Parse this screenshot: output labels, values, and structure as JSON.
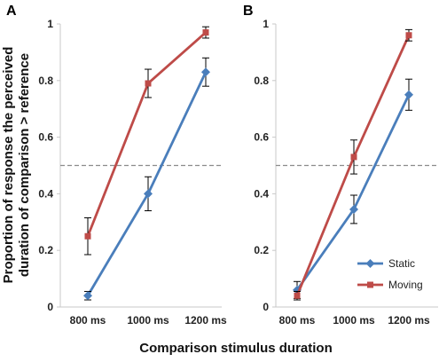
{
  "figure": {
    "ylabel_line1": "Proportion of response the perceived",
    "ylabel_line2": "duration of  comparison > reference",
    "xlabel": "Comparison stimulus duration"
  },
  "colors": {
    "static": "#4a7ebb",
    "moving": "#be4b48",
    "reference_line": "#8c8c8c",
    "error_bar": "#000000"
  },
  "icons": {
    "static_marker": "diamond-icon",
    "moving_marker": "square-icon"
  },
  "chart_data": [
    {
      "type": "line",
      "panel_label": "A",
      "categories": [
        "800 ms",
        "1000 ms",
        "1200 ms"
      ],
      "ylim": [
        0,
        1
      ],
      "yticks": [
        "0",
        "0.2",
        "0.4",
        "0.6",
        "0.8",
        "1"
      ],
      "reference_line": 0.5,
      "grid": false,
      "legend": null,
      "series": [
        {
          "name": "Static",
          "marker": "diamond",
          "values": [
            0.04,
            0.4,
            0.83
          ],
          "err": [
            0.015,
            0.06,
            0.05
          ]
        },
        {
          "name": "Moving",
          "marker": "square",
          "values": [
            0.25,
            0.79,
            0.97
          ],
          "err": [
            0.065,
            0.05,
            0.02
          ]
        }
      ]
    },
    {
      "type": "line",
      "panel_label": "B",
      "categories": [
        "800 ms",
        "1000 ms",
        "1200 ms"
      ],
      "ylim": [
        0,
        1
      ],
      "yticks": [
        "0",
        "0.2",
        "0.4",
        "0.6",
        "0.8",
        "1"
      ],
      "reference_line": 0.5,
      "grid": false,
      "legend": "bottom-right",
      "series": [
        {
          "name": "Static",
          "marker": "diamond",
          "values": [
            0.06,
            0.345,
            0.75
          ],
          "err": [
            0.03,
            0.05,
            0.055
          ]
        },
        {
          "name": "Moving",
          "marker": "square",
          "values": [
            0.04,
            0.53,
            0.96
          ],
          "err": [
            0.015,
            0.06,
            0.02
          ]
        }
      ]
    }
  ]
}
